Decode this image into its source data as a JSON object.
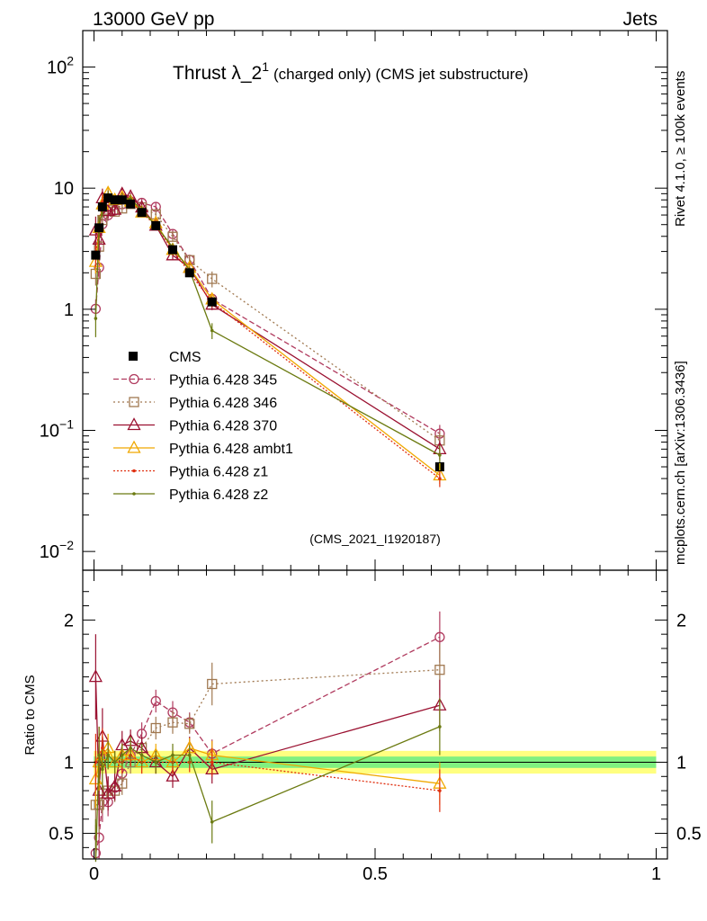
{
  "header": {
    "left": "13000 GeV pp",
    "right": "Jets"
  },
  "title": {
    "main": "Thrust λ_2",
    "superscript": "1",
    "small": "(charged only) (CMS jet substructure)"
  },
  "side_labels": {
    "rivet": "Rivet 4.1.0, ≥ 100k events",
    "mcplots": "mcplots.cern.ch [arXiv:1306.3436]"
  },
  "analysis_id": "(CMS_2021_I1920187)",
  "ratio_ylabel": "Ratio to CMS",
  "upper_ticks": [
    {
      "value": 100,
      "base": "10",
      "exp": "2"
    },
    {
      "value": 10,
      "base": "10",
      "exp": ""
    },
    {
      "value": 1,
      "base": "1",
      "exp": ""
    },
    {
      "value": 0.1,
      "base": "10",
      "exp": "−1"
    },
    {
      "value": 0.01,
      "base": "10",
      "exp": "−2"
    }
  ],
  "ratio_ticks": [
    {
      "value": 2,
      "label": "2"
    },
    {
      "value": 1,
      "label": "1"
    },
    {
      "value": 0.5,
      "label": "0.5"
    }
  ],
  "x_ticks": [
    {
      "value": 0,
      "label": "0"
    },
    {
      "value": 0.5,
      "label": "0.5"
    },
    {
      "value": 1,
      "label": "1"
    }
  ],
  "chart_data": {
    "type": "line",
    "title": "Thrust λ_2^1 (charged only) (CMS jet substructure)",
    "xlabel": "",
    "ylabel": "",
    "xlim": [
      -0.02,
      1.02
    ],
    "ylim": [
      0.007,
      200
    ],
    "yscale": "log",
    "ratio_ylim": [
      0.32,
      2.35
    ],
    "ratio_ylabel": "Ratio to CMS",
    "x": [
      0.003,
      0.009,
      0.015,
      0.025,
      0.037,
      0.05,
      0.065,
      0.085,
      0.11,
      0.14,
      0.17,
      0.21,
      0.615
    ],
    "cms": {
      "name": "CMS",
      "values": [
        2.8,
        4.7,
        7.0,
        8.3,
        8.0,
        8.0,
        7.4,
        6.3,
        4.9,
        3.1,
        2.0,
        1.15,
        0.05
      ],
      "band_stat": [
        0.05,
        0.05,
        0.05,
        0.04,
        0.04,
        0.04,
        0.04,
        0.04,
        0.04,
        0.04,
        0.04,
        0.04,
        0.04
      ],
      "band_total": [
        0.1,
        0.1,
        0.09,
        0.08,
        0.08,
        0.08,
        0.08,
        0.08,
        0.08,
        0.08,
        0.08,
        0.08,
        0.08
      ]
    },
    "series": [
      {
        "name": "Pythia 6.428 345",
        "color": "#b03a5e",
        "dash": "6,3",
        "marker": "circle",
        "ratio": [
          0.36,
          0.47,
          0.72,
          0.72,
          0.82,
          0.92,
          1.05,
          1.2,
          1.43,
          1.35,
          1.28,
          1.06,
          1.88
        ],
        "ratio_err": [
          0.2,
          0.2,
          0.14,
          0.1,
          0.08,
          0.08,
          0.08,
          0.08,
          0.08,
          0.08,
          0.07,
          0.1,
          0.18
        ]
      },
      {
        "name": "Pythia 6.428 346",
        "color": "#a07850",
        "dash": "2,3",
        "marker": "square",
        "ratio": [
          0.7,
          0.7,
          0.78,
          0.8,
          0.8,
          0.85,
          1.0,
          1.1,
          1.24,
          1.28,
          1.27,
          1.55,
          1.65
        ],
        "ratio_err": [
          0.2,
          0.2,
          0.14,
          0.1,
          0.08,
          0.08,
          0.08,
          0.08,
          0.08,
          0.08,
          0.07,
          0.15,
          0.18
        ]
      },
      {
        "name": "Pythia 6.428 370",
        "color": "#9a1030",
        "dash": "",
        "marker": "triangle",
        "ratio": [
          1.6,
          0.8,
          1.18,
          0.78,
          0.83,
          1.12,
          1.15,
          1.1,
          1.0,
          0.9,
          1.1,
          0.95,
          1.4
        ],
        "ratio_err": [
          0.3,
          0.25,
          0.2,
          0.12,
          0.1,
          0.1,
          0.08,
          0.08,
          0.08,
          0.08,
          0.08,
          0.1,
          0.18
        ]
      },
      {
        "name": "Pythia 6.428 ambt1",
        "color": "#f0a800",
        "dash": "",
        "marker": "triangle",
        "ratio": [
          0.88,
          1.0,
          1.05,
          1.1,
          1.0,
          1.05,
          1.05,
          1.0,
          1.05,
          1.0,
          1.1,
          1.05,
          0.85
        ],
        "ratio_err": [
          0.2,
          0.2,
          0.14,
          0.1,
          0.08,
          0.08,
          0.08,
          0.08,
          0.08,
          0.08,
          0.07,
          0.1,
          0.15
        ]
      },
      {
        "name": "Pythia 6.428 z1",
        "color": "#e03010",
        "dash": "2,2",
        "marker": "dot",
        "ratio": [
          1.0,
          1.05,
          1.1,
          1.05,
          1.0,
          1.0,
          1.05,
          1.0,
          1.0,
          1.0,
          1.0,
          1.0,
          0.8
        ],
        "ratio_err": [
          0.2,
          0.2,
          0.14,
          0.1,
          0.08,
          0.08,
          0.08,
          0.08,
          0.08,
          0.08,
          0.07,
          0.1,
          0.15
        ]
      },
      {
        "name": "Pythia 6.428 z2",
        "color": "#6b7a10",
        "dash": "",
        "marker": "dot",
        "ratio": [
          0.3,
          1.05,
          0.95,
          1.05,
          1.0,
          1.05,
          1.1,
          1.05,
          1.0,
          1.05,
          1.05,
          0.58,
          1.25
        ],
        "ratio_err": [
          0.3,
          0.2,
          0.14,
          0.1,
          0.08,
          0.08,
          0.08,
          0.08,
          0.08,
          0.08,
          0.07,
          0.15,
          0.2
        ]
      }
    ]
  }
}
